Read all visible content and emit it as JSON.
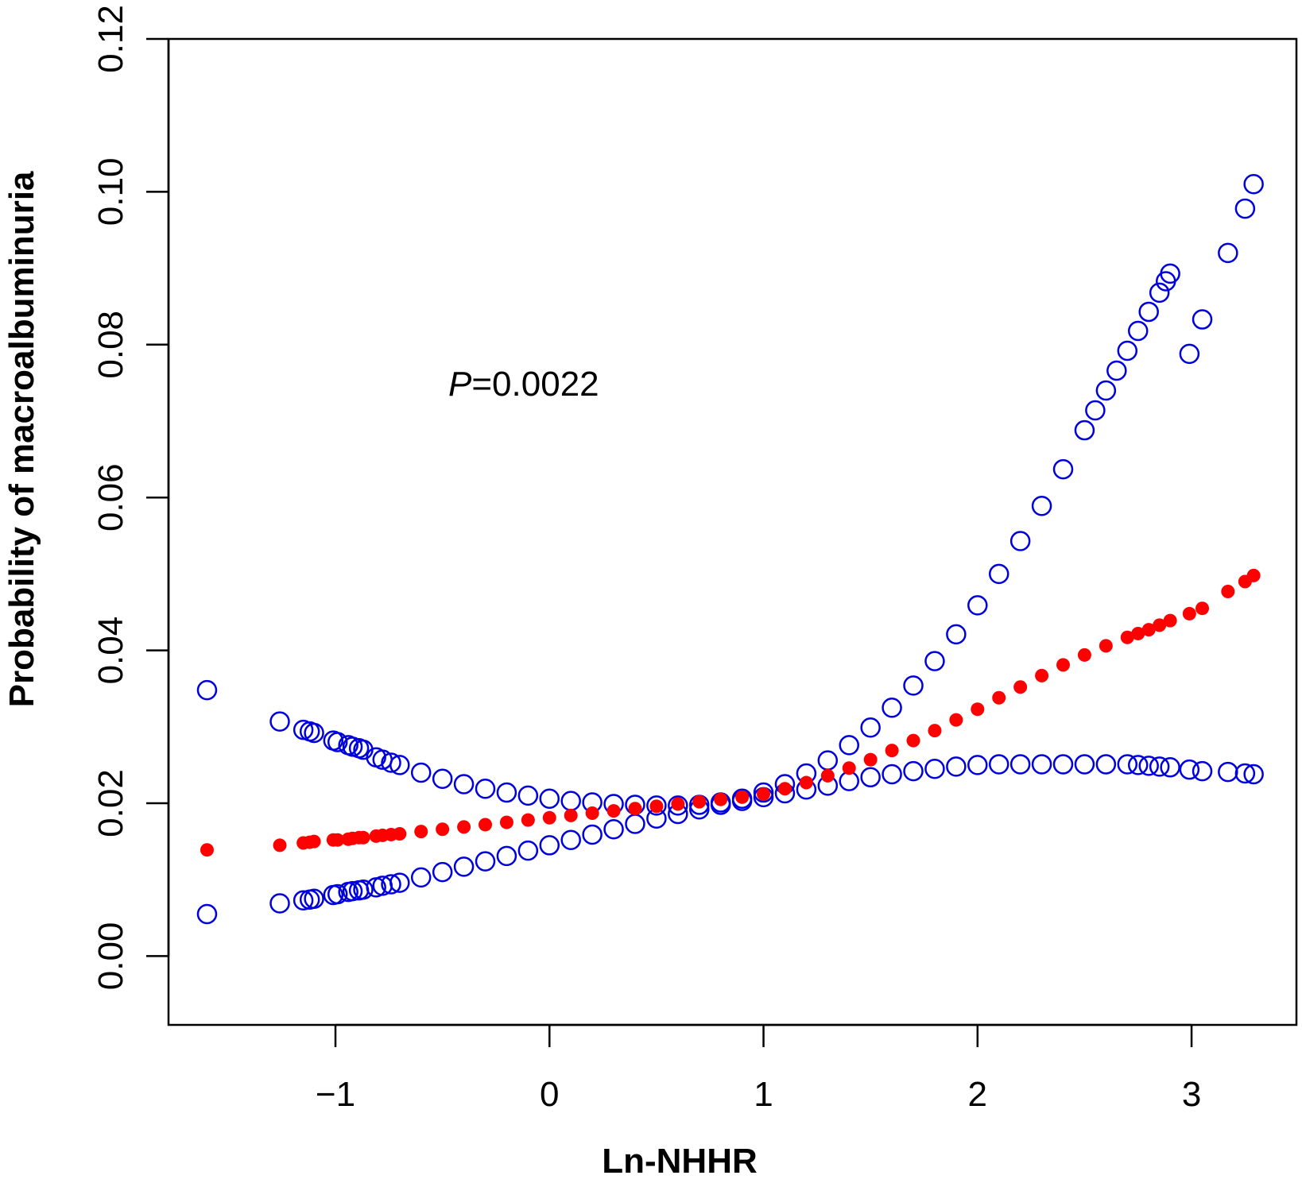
{
  "chart_data": {
    "type": "scatter",
    "title": "",
    "xlabel": "Ln-NHHR",
    "ylabel": "Probability of macroalbuminuria",
    "xlim": [
      -1.78,
      3.49
    ],
    "ylim": [
      -0.009,
      0.12
    ],
    "xticks": [
      -1,
      0,
      1,
      2,
      3
    ],
    "xtick_labels": [
      "−1",
      "0",
      "1",
      "2",
      "3"
    ],
    "yticks": [
      0.0,
      0.02,
      0.04,
      0.06,
      0.08,
      0.1,
      0.12
    ],
    "ytick_labels": [
      "0.00",
      "0.02",
      "0.04",
      "0.06",
      "0.08",
      "0.10",
      "0.12"
    ],
    "grid": false,
    "annotation": {
      "prefix": "P",
      "text": "=0.0022"
    },
    "series": [
      {
        "name": "predicted probability",
        "color": "#ff0000",
        "marker": "filled-circle",
        "x": [
          -1.6,
          -1.26,
          -1.15,
          -1.12,
          -1.1,
          -1.01,
          -0.99,
          -0.94,
          -0.92,
          -0.89,
          -0.87,
          -0.81,
          -0.78,
          -0.74,
          -0.7,
          -0.6,
          -0.5,
          -0.4,
          -0.3,
          -0.2,
          -0.1,
          0.0,
          0.1,
          0.2,
          0.3,
          0.4,
          0.5,
          0.6,
          0.7,
          0.8,
          0.9,
          1.0,
          1.1,
          1.2,
          1.3,
          1.4,
          1.5,
          1.6,
          1.7,
          1.8,
          1.9,
          2.0,
          2.1,
          2.2,
          2.3,
          2.4,
          2.5,
          2.6,
          2.7,
          2.75,
          2.8,
          2.85,
          2.9,
          2.99,
          3.05,
          3.17,
          3.25,
          3.29
        ],
        "y": [
          0.0139,
          0.0145,
          0.0148,
          0.0149,
          0.015,
          0.0152,
          0.0152,
          0.0153,
          0.0154,
          0.0155,
          0.0155,
          0.0157,
          0.0158,
          0.0159,
          0.016,
          0.0163,
          0.0166,
          0.0169,
          0.0172,
          0.0175,
          0.0178,
          0.0181,
          0.0184,
          0.0187,
          0.019,
          0.0193,
          0.0196,
          0.0199,
          0.0202,
          0.0205,
          0.0208,
          0.0212,
          0.0219,
          0.0227,
          0.0236,
          0.0246,
          0.0257,
          0.0269,
          0.0282,
          0.0295,
          0.0309,
          0.0323,
          0.0338,
          0.0352,
          0.0367,
          0.0381,
          0.0394,
          0.0406,
          0.0417,
          0.0422,
          0.0427,
          0.0433,
          0.0439,
          0.0448,
          0.0455,
          0.0477,
          0.049,
          0.0498
        ]
      },
      {
        "name": "upper confidence bound",
        "color": "#0000dd",
        "marker": "open-circle",
        "x": [
          -1.6,
          -1.26,
          -1.15,
          -1.12,
          -1.1,
          -1.01,
          -0.99,
          -0.94,
          -0.92,
          -0.89,
          -0.87,
          -0.81,
          -0.78,
          -0.74,
          -0.7,
          -0.6,
          -0.5,
          -0.4,
          -0.3,
          -0.2,
          -0.1,
          0.0,
          0.1,
          0.2,
          0.3,
          0.4,
          0.5,
          0.6,
          0.7,
          0.8,
          0.9,
          1.0,
          1.1,
          1.2,
          1.3,
          1.4,
          1.5,
          1.6,
          1.7,
          1.8,
          1.9,
          2.0,
          2.1,
          2.2,
          2.3,
          2.4,
          2.5,
          2.55,
          2.6,
          2.65,
          2.7,
          2.75,
          2.8,
          2.85,
          2.88,
          2.9,
          2.99,
          3.05,
          3.17,
          3.25,
          3.29
        ],
        "y": [
          0.0348,
          0.0307,
          0.0296,
          0.0294,
          0.0292,
          0.0282,
          0.028,
          0.0276,
          0.0274,
          0.0272,
          0.027,
          0.026,
          0.0257,
          0.0253,
          0.025,
          0.024,
          0.0232,
          0.0225,
          0.0219,
          0.0214,
          0.021,
          0.0206,
          0.0203,
          0.0201,
          0.0199,
          0.0198,
          0.0197,
          0.0197,
          0.0198,
          0.0201,
          0.0206,
          0.0214,
          0.0225,
          0.0239,
          0.0256,
          0.0276,
          0.0299,
          0.0325,
          0.0354,
          0.0386,
          0.0421,
          0.0459,
          0.05,
          0.0543,
          0.0589,
          0.0637,
          0.0688,
          0.0714,
          0.074,
          0.0766,
          0.0792,
          0.0818,
          0.0843,
          0.0868,
          0.0883,
          0.0893,
          0.0788,
          0.0833,
          0.092,
          0.0978,
          0.101
        ]
      },
      {
        "name": "lower confidence bound",
        "color": "#0000dd",
        "marker": "open-circle",
        "x": [
          -1.6,
          -1.26,
          -1.15,
          -1.12,
          -1.1,
          -1.01,
          -0.99,
          -0.94,
          -0.92,
          -0.89,
          -0.87,
          -0.81,
          -0.78,
          -0.74,
          -0.7,
          -0.6,
          -0.5,
          -0.4,
          -0.3,
          -0.2,
          -0.1,
          0.0,
          0.1,
          0.2,
          0.3,
          0.4,
          0.5,
          0.6,
          0.7,
          0.8,
          0.9,
          1.0,
          1.1,
          1.2,
          1.3,
          1.4,
          1.5,
          1.6,
          1.7,
          1.8,
          1.9,
          2.0,
          2.1,
          2.2,
          2.3,
          2.4,
          2.5,
          2.6,
          2.7,
          2.75,
          2.8,
          2.85,
          2.9,
          2.99,
          3.05,
          3.17,
          3.25,
          3.29
        ],
        "y": [
          0.0055,
          0.0069,
          0.0073,
          0.0074,
          0.0075,
          0.008,
          0.0081,
          0.0084,
          0.0085,
          0.0086,
          0.0087,
          0.009,
          0.0092,
          0.0094,
          0.0096,
          0.0103,
          0.011,
          0.0117,
          0.0124,
          0.0131,
          0.0138,
          0.0145,
          0.0152,
          0.0159,
          0.0166,
          0.0173,
          0.018,
          0.0186,
          0.0192,
          0.0198,
          0.0203,
          0.0208,
          0.0213,
          0.0218,
          0.0223,
          0.0229,
          0.0234,
          0.0238,
          0.0242,
          0.0245,
          0.0248,
          0.025,
          0.0251,
          0.0251,
          0.0251,
          0.0251,
          0.0251,
          0.0251,
          0.0251,
          0.025,
          0.0249,
          0.0248,
          0.0247,
          0.0244,
          0.0242,
          0.0241,
          0.0239,
          0.0238
        ]
      }
    ]
  }
}
